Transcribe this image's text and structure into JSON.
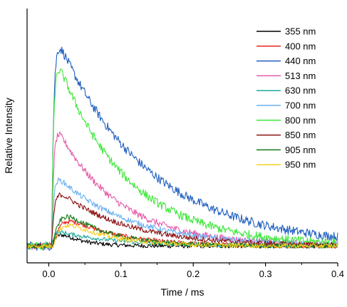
{
  "chart_data": {
    "type": "line",
    "title": "",
    "xlabel": "Time / ms",
    "ylabel": "Relative Intensity",
    "xlim": [
      -0.03,
      0.4
    ],
    "ylim": [
      0,
      1.0
    ],
    "x_ticks": [
      0.0,
      0.1,
      0.2,
      0.3,
      0.4
    ],
    "x_tick_labels": [
      "0.0",
      "0.1",
      "0.2",
      "0.3",
      "0.4"
    ],
    "y_ticks_labeled": false,
    "grid": false,
    "legend_position": "top-right",
    "series": [
      {
        "name": "355 nm",
        "color": "#000000",
        "peak": 0.09,
        "tau_ms": 0.03,
        "rise_ms": 0.008,
        "delay_ms": 0.005
      },
      {
        "name": "400 nm",
        "color": "#e8231e",
        "peak": 0.17,
        "tau_ms": 0.07,
        "rise_ms": 0.012,
        "delay_ms": 0.006
      },
      {
        "name": "440 nm",
        "color": "#1f5fbf",
        "peak": 0.94,
        "tau_ms": 0.125,
        "rise_ms": 0.003,
        "delay_ms": 0.004
      },
      {
        "name": "513 nm",
        "color": "#e85aa8",
        "peak": 0.55,
        "tau_ms": 0.085,
        "rise_ms": 0.003,
        "delay_ms": 0.004
      },
      {
        "name": "630 nm",
        "color": "#1fa89a",
        "peak": 0.07,
        "tau_ms": 0.08,
        "rise_ms": 0.003,
        "delay_ms": 0.004
      },
      {
        "name": "700 nm",
        "color": "#6ab0f0",
        "peak": 0.32,
        "tau_ms": 0.1,
        "rise_ms": 0.003,
        "delay_ms": 0.004
      },
      {
        "name": "800 nm",
        "color": "#3ee83a",
        "peak": 0.86,
        "tau_ms": 0.095,
        "rise_ms": 0.003,
        "delay_ms": 0.004
      },
      {
        "name": "850 nm",
        "color": "#8b1010",
        "peak": 0.26,
        "tau_ms": 0.095,
        "rise_ms": 0.004,
        "delay_ms": 0.004
      },
      {
        "name": "905 nm",
        "color": "#157a15",
        "peak": 0.2,
        "tau_ms": 0.06,
        "rise_ms": 0.01,
        "delay_ms": 0.006
      },
      {
        "name": "950 nm",
        "color": "#f5d020",
        "peak": 0.15,
        "tau_ms": 0.06,
        "rise_ms": 0.012,
        "delay_ms": 0.006
      }
    ],
    "baseline": 0.02
  }
}
